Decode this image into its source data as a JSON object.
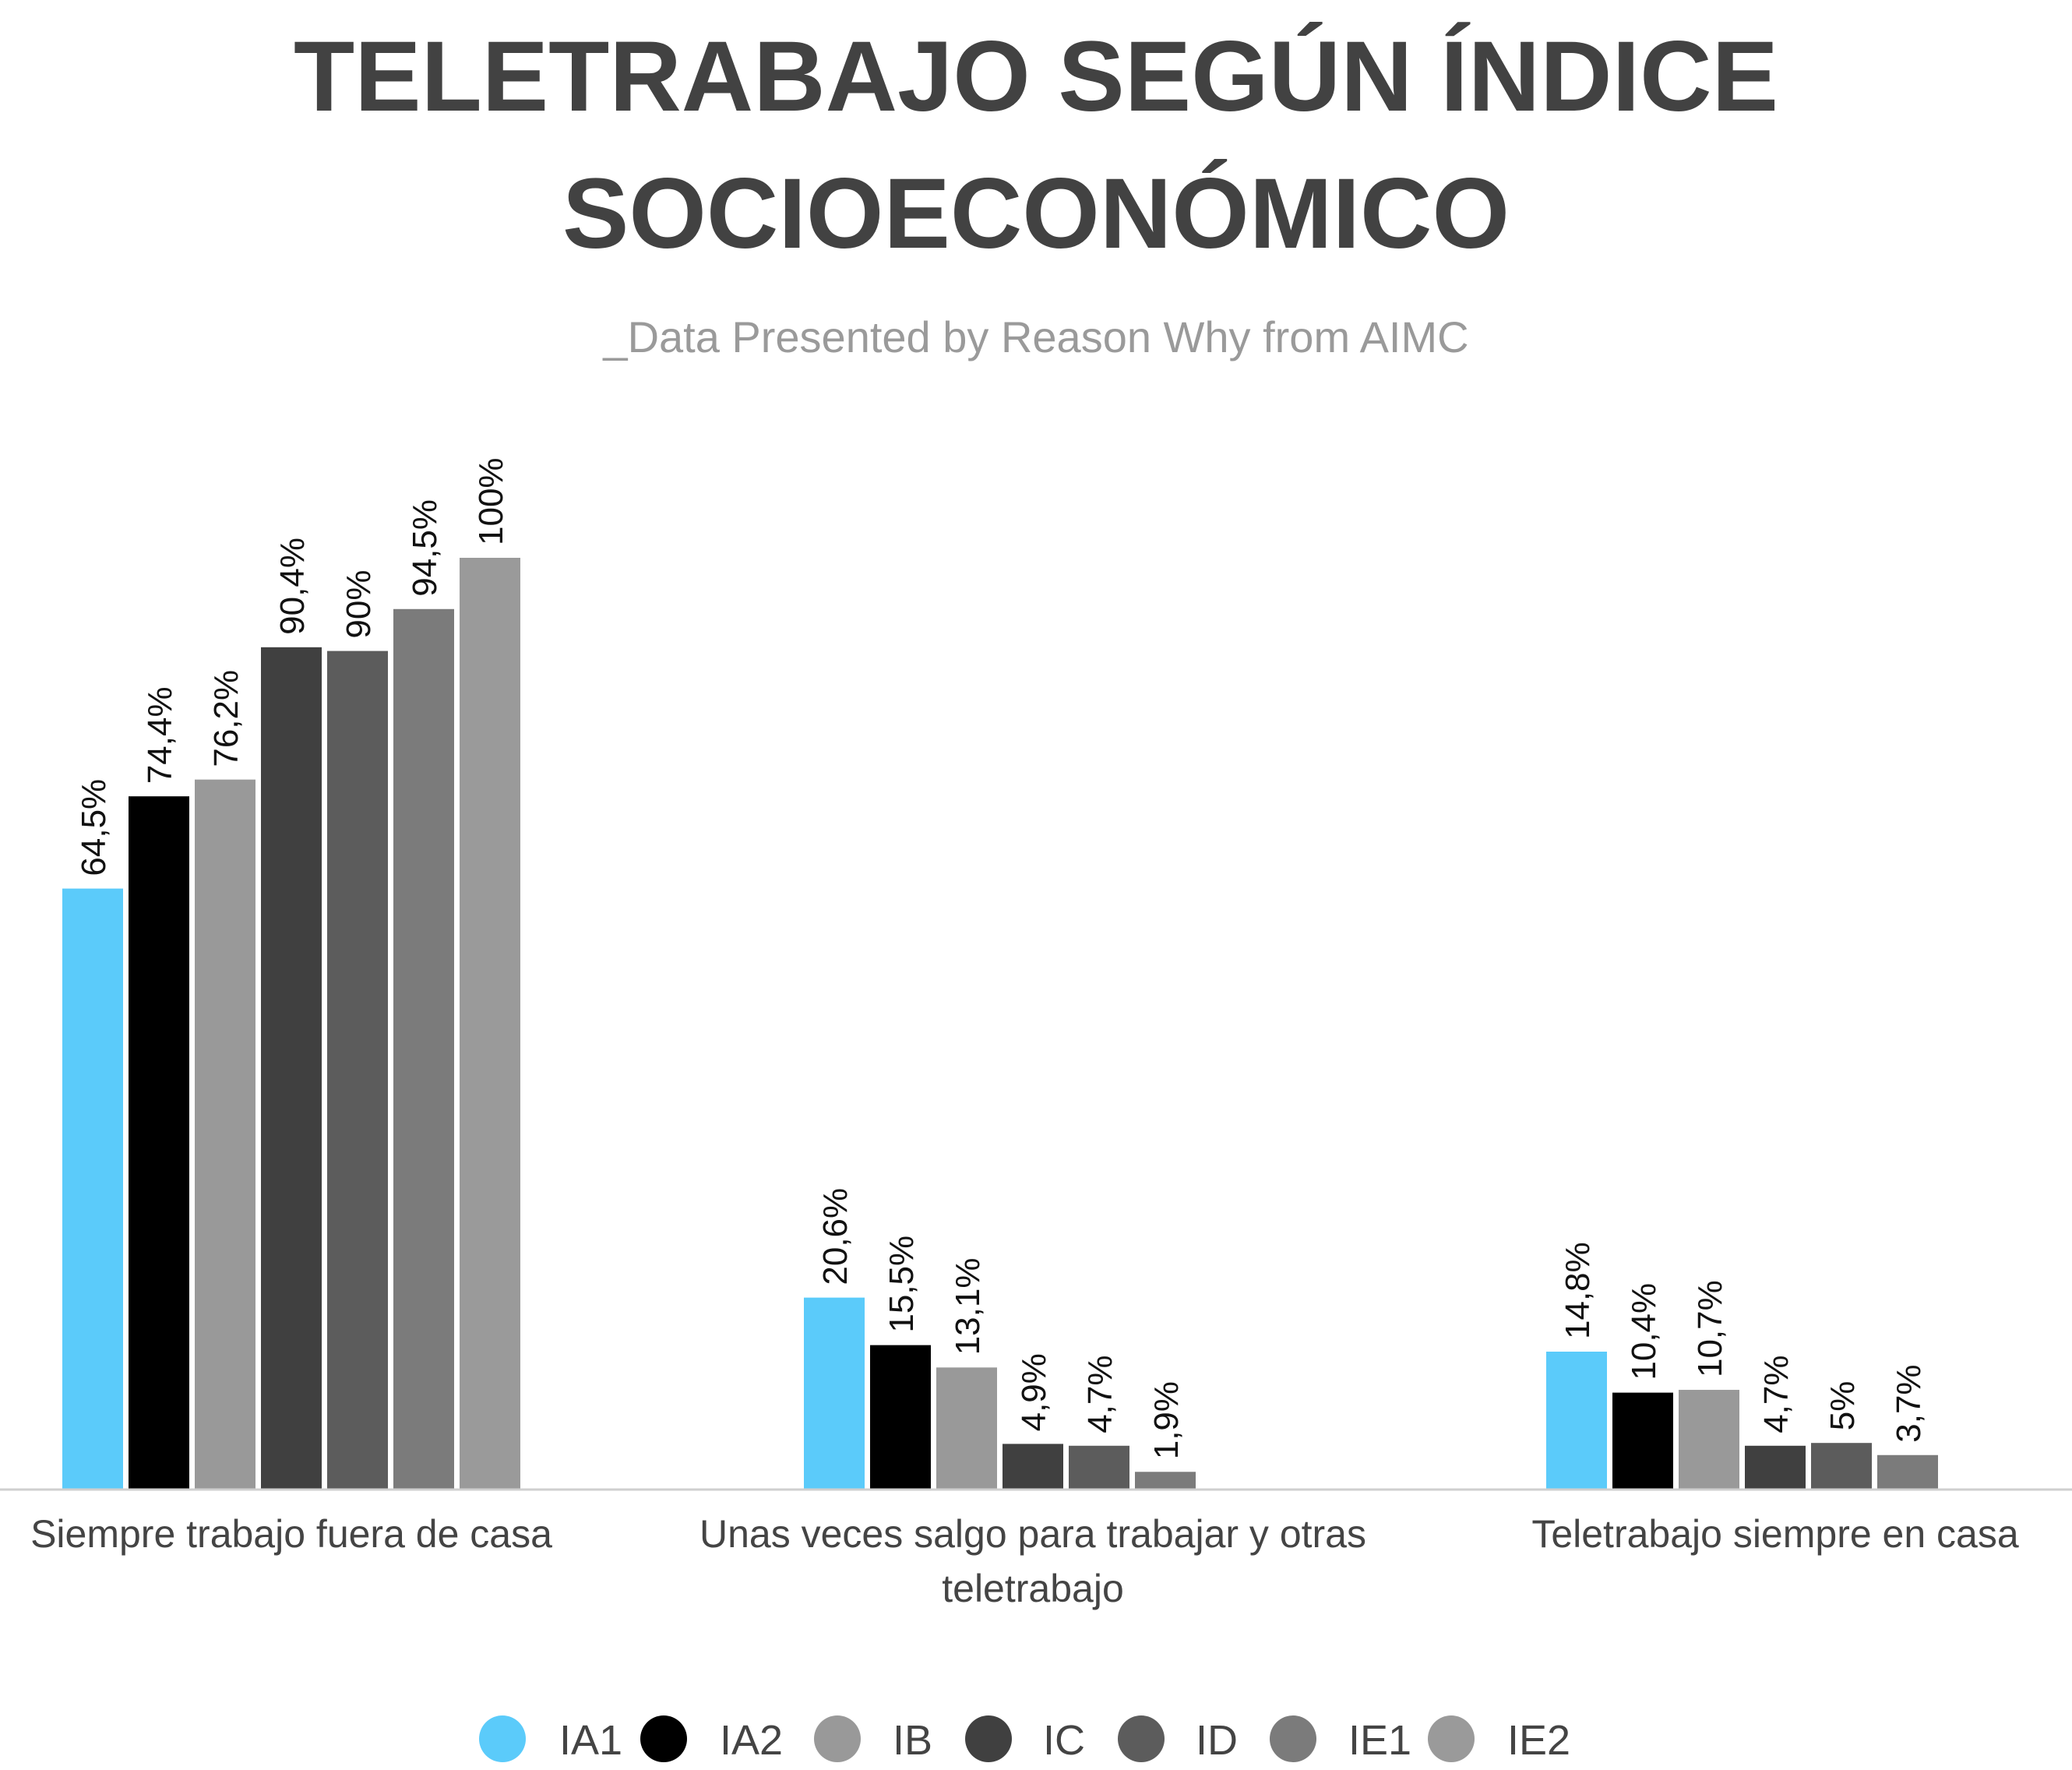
{
  "chart_data": {
    "type": "bar",
    "title_lines": [
      "TELETRABAJO SEGÚN ÍNDICE",
      "SOCIOECONÓMICO"
    ],
    "subtitle": "_Data Presented by Reason Why from AIMC",
    "categories": [
      [
        "Siempre trabajo fuera de casa"
      ],
      [
        "Unas veces salgo para trabajar y otras",
        "teletrabajo"
      ],
      [
        "Teletrabajo siempre en casa"
      ]
    ],
    "series": [
      {
        "name": "IA1",
        "color": "#5bcbfa",
        "values": [
          64.5,
          20.6,
          14.8
        ],
        "labels": [
          "64,5%",
          "20,6%",
          "14,8%"
        ]
      },
      {
        "name": "IA2",
        "color": "#000000",
        "values": [
          74.4,
          15.5,
          10.4
        ],
        "labels": [
          "74,4%",
          "15,5%",
          "10,4%"
        ]
      },
      {
        "name": "IB",
        "color": "#999999",
        "values": [
          76.2,
          13.1,
          10.7
        ],
        "labels": [
          "76,2%",
          "13,1%",
          "10,7%"
        ]
      },
      {
        "name": "IC",
        "color": "#404040",
        "values": [
          90.4,
          4.9,
          4.7
        ],
        "labels": [
          "90,4%",
          "4,9%",
          "4,7%"
        ]
      },
      {
        "name": "ID",
        "color": "#5c5c5c",
        "values": [
          90,
          4.7,
          5
        ],
        "labels": [
          "90%",
          "4,7%",
          "5%"
        ]
      },
      {
        "name": "IE1",
        "color": "#7b7b7b",
        "values": [
          94.5,
          1.9,
          3.7
        ],
        "labels": [
          "94,5%",
          "1,9%",
          "3,7%"
        ]
      },
      {
        "name": "IE2",
        "color": "#9a9a9a",
        "values": [
          100,
          null,
          null
        ],
        "labels": [
          "100%",
          null,
          null
        ]
      }
    ],
    "ylim": [
      0,
      100
    ],
    "grid": false,
    "legend_position": "bottom"
  }
}
